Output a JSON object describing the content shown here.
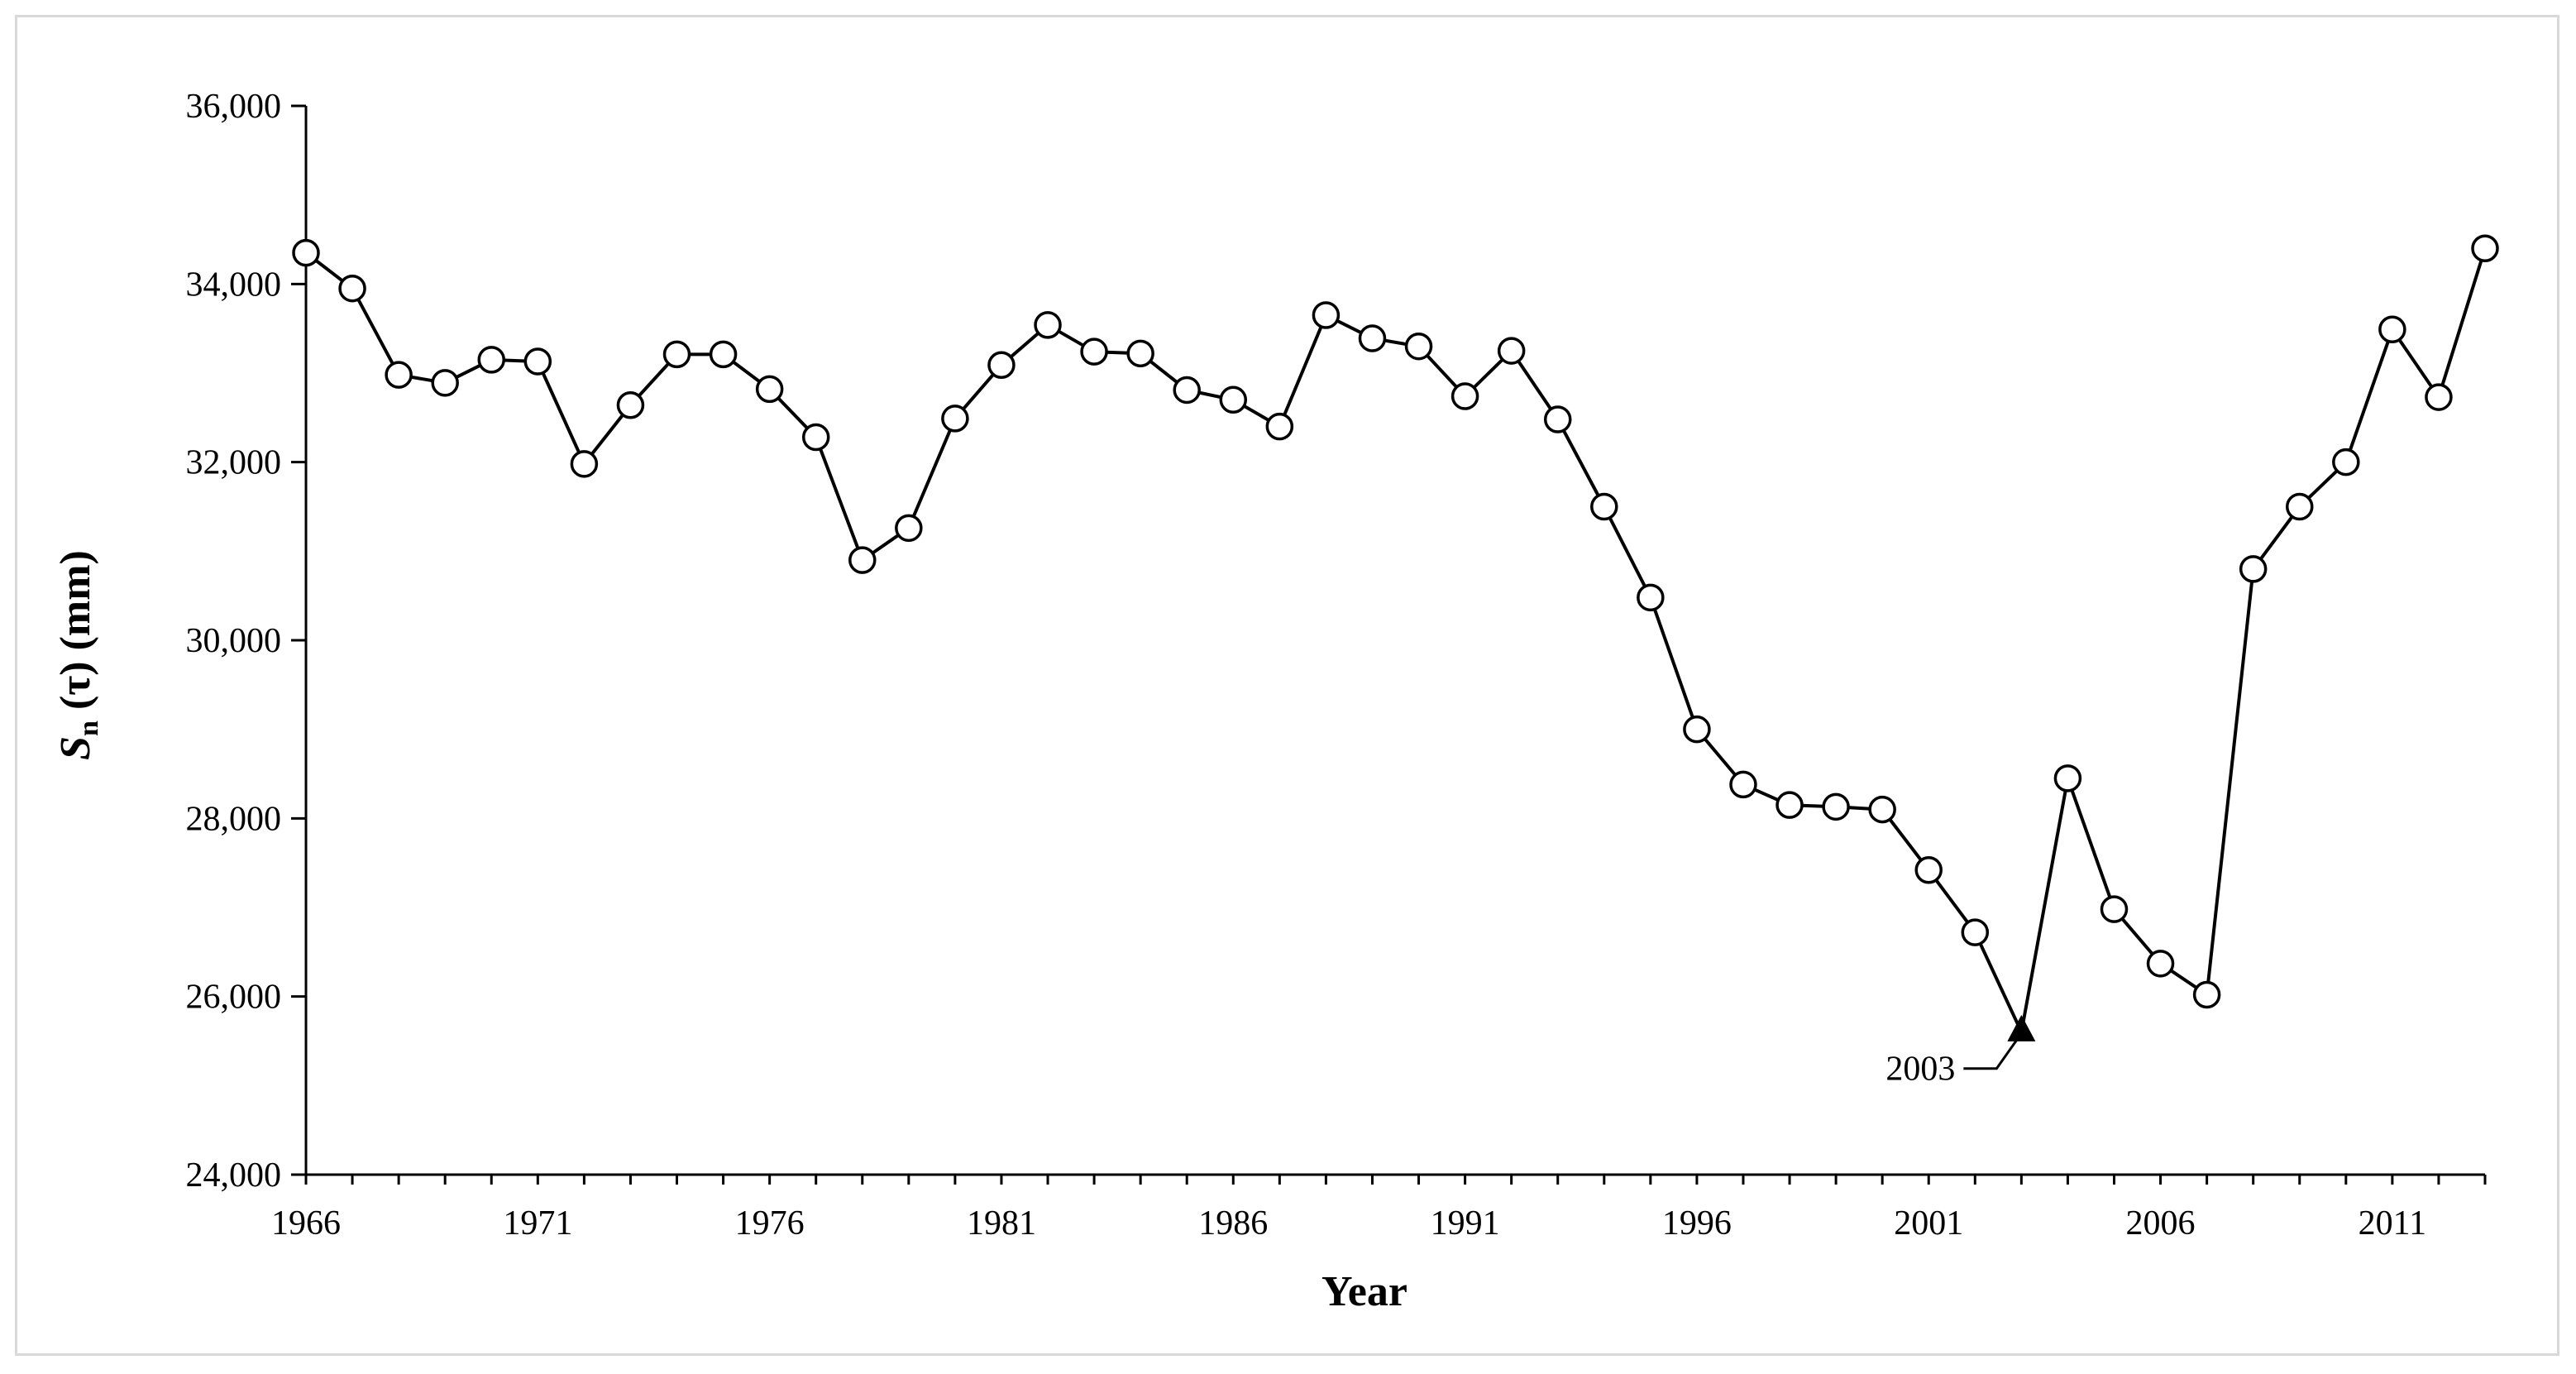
{
  "chart_data": {
    "type": "line",
    "xlabel": "Year",
    "ylabel_main": "S",
    "ylabel_sub": "n",
    "ylabel_rest": " (τ) (mm)",
    "ylim": [
      24000,
      36000
    ],
    "yticks": [
      24000,
      26000,
      28000,
      30000,
      32000,
      34000,
      36000
    ],
    "ytick_labels": [
      "24,000",
      "26,000",
      "28,000",
      "30,000",
      "32,000",
      "34,000",
      "36,000"
    ],
    "xlim": [
      1966,
      2013
    ],
    "xticks": [
      1966,
      1971,
      1976,
      1981,
      1986,
      1991,
      1996,
      2001,
      2006,
      2011
    ],
    "xtick_labels": [
      "1966",
      "1971",
      "1976",
      "1981",
      "1986",
      "1991",
      "1996",
      "2001",
      "2006",
      "2011"
    ],
    "grid": false,
    "series": [
      {
        "marker": "open-circle",
        "x": [
          1966,
          1967,
          1968,
          1969,
          1970,
          1971,
          1972,
          1973,
          1974,
          1975,
          1976,
          1977,
          1978,
          1979,
          1980,
          1981,
          1982,
          1983,
          1984,
          1985,
          1986,
          1987,
          1988,
          1989,
          1990,
          1991,
          1992,
          1993,
          1994,
          1995,
          1996,
          1997,
          1998,
          1999,
          2000,
          2001,
          2002,
          2003,
          2004,
          2005,
          2006,
          2007,
          2008,
          2009,
          2010,
          2011,
          2012,
          2013
        ],
        "values": [
          34350,
          33950,
          32980,
          32890,
          33150,
          33130,
          31980,
          32640,
          33210,
          33210,
          32820,
          32280,
          30900,
          31260,
          32490,
          33090,
          33540,
          33240,
          33220,
          32810,
          32700,
          32400,
          33650,
          33390,
          33300,
          32740,
          33250,
          32480,
          31500,
          30480,
          29000,
          28380,
          28150,
          28130,
          28100,
          27420,
          26720,
          25600,
          28450,
          26980,
          26370,
          26020,
          30800,
          31500,
          32000,
          33490,
          32730,
          34400
        ]
      }
    ],
    "highlight": {
      "x": 2003,
      "value": 25600,
      "marker": "filled-triangle",
      "label": "2003"
    }
  }
}
